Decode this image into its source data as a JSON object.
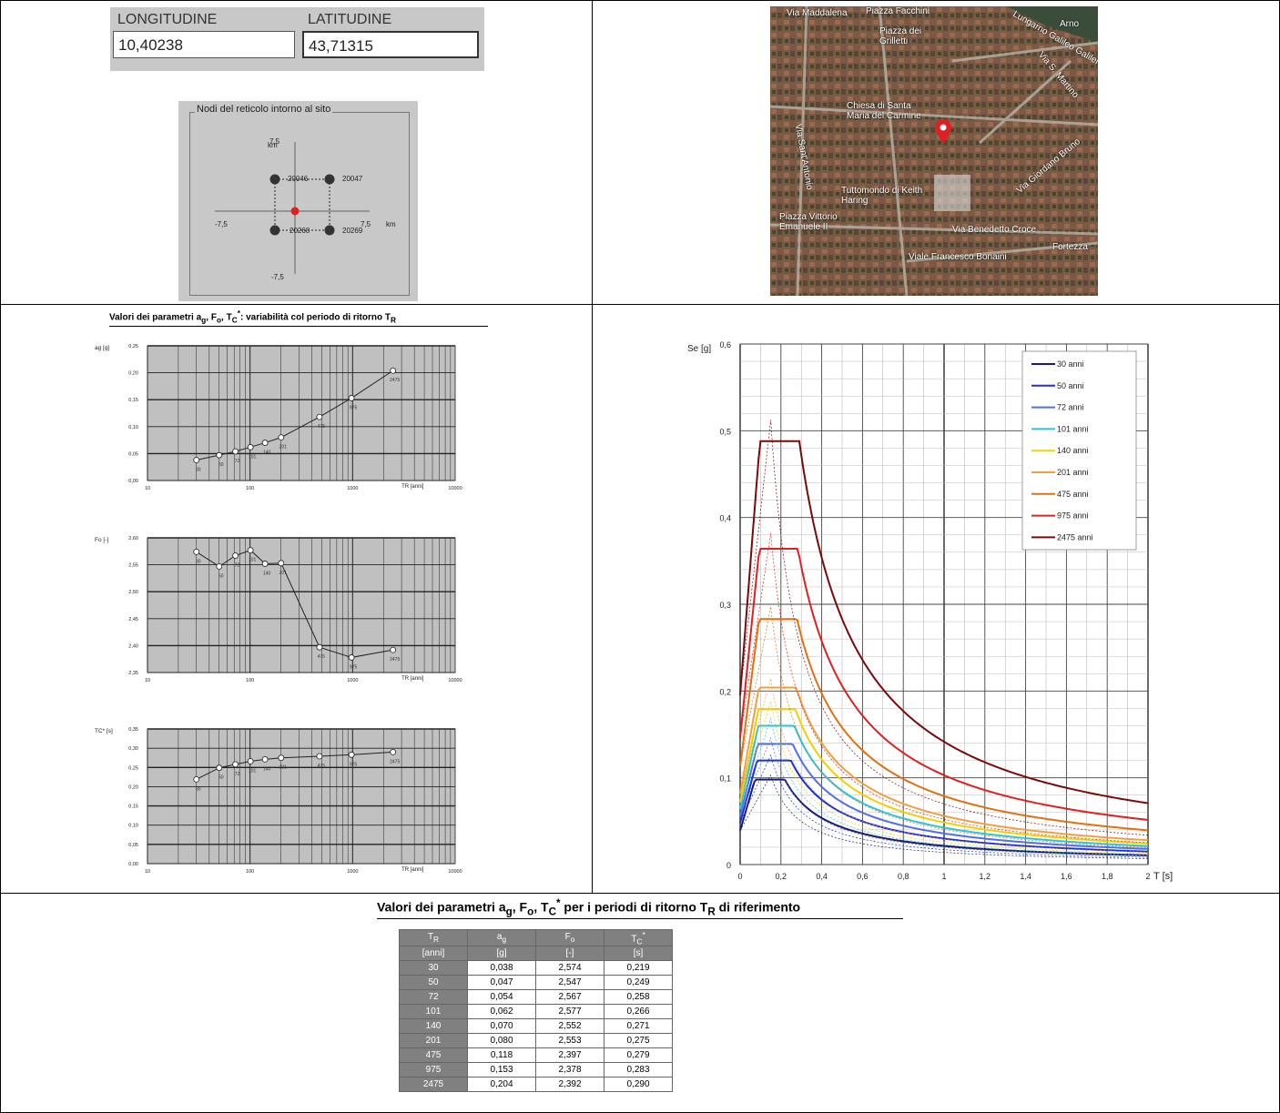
{
  "coords": {
    "lon_label": "LONGITUDINE",
    "lat_label": "LATITUDINE",
    "lon_value": "10,40238",
    "lat_value": "43,71315"
  },
  "nodes": {
    "title": "Nodi del reticolo intorno al sito",
    "ids": [
      "20046",
      "20047",
      "20268",
      "20269"
    ],
    "axis_pos": "7,5",
    "axis_neg": "-7,5",
    "unit": "km"
  },
  "map": {
    "labels": [
      "Piazza dei Grilletti",
      "Chiesa di Santa Maria del Carmine",
      "Tuttomondo di Keith Haring",
      "Piazza Vittorio Emanuele II",
      "Via Benedetto Croce",
      "Viale Francesco Bonaini",
      "Fortezza",
      "Via S. Martino",
      "Via Sant'Antonio",
      "Lungarno Galileo Galilei",
      "Piazza Facchini",
      "Arno",
      "Via Giordano Bruno",
      "Via Maddalena"
    ],
    "marker_color": "#e02020"
  },
  "section1_title_parts": {
    "pre": "Valori dei parametri a",
    "ag_sub": "g",
    "mid1": ", F",
    "fo_sub": "o",
    "mid2": ", T",
    "tc_sub": "C",
    "tc_sup": "*",
    "post": ": variabilità col periodo di ritorno T",
    "tr_sub": "R"
  },
  "section2_title_parts": {
    "pre": "Valori dei parametri a",
    "ag_sub": "g",
    "mid1": ", F",
    "fo_sub": "o",
    "mid2": ", T",
    "tc_sub": "C",
    "tc_sup": "*",
    "post": " per i periodi di ritorno T",
    "tr_sub": "R",
    "post2": " di riferimento"
  },
  "table": {
    "headers": [
      {
        "main": "T",
        "sub": "R",
        "unit": "[anni]"
      },
      {
        "main": "a",
        "sub": "g",
        "unit": "[g]"
      },
      {
        "main": "F",
        "sub": "o",
        "unit": "[-]"
      },
      {
        "main": "T",
        "sub": "C",
        "sup": "*",
        "unit": "[s]"
      }
    ],
    "rows": [
      [
        "30",
        "0,038",
        "2,574",
        "0,219"
      ],
      [
        "50",
        "0,047",
        "2,547",
        "0,249"
      ],
      [
        "72",
        "0,054",
        "2,567",
        "0,258"
      ],
      [
        "101",
        "0,062",
        "2,577",
        "0,266"
      ],
      [
        "140",
        "0,070",
        "2,552",
        "0,271"
      ],
      [
        "201",
        "0,080",
        "2,553",
        "0,275"
      ],
      [
        "475",
        "0,118",
        "2,397",
        "0,279"
      ],
      [
        "975",
        "0,153",
        "2,378",
        "0,283"
      ],
      [
        "2475",
        "0,204",
        "2,392",
        "0,290"
      ]
    ]
  },
  "chart_data": [
    {
      "type": "line",
      "title": "",
      "ylabel": "ag [g]",
      "xlabel": "TR [anni]",
      "xscale": "log",
      "xlim": [
        10,
        10000
      ],
      "ylim": [
        0,
        0.25
      ],
      "x": [
        30,
        50,
        72,
        101,
        140,
        201,
        475,
        975,
        2475
      ],
      "values": [
        0.038,
        0.047,
        0.054,
        0.062,
        0.07,
        0.08,
        0.118,
        0.153,
        0.204
      ],
      "yticks": [
        "0,00",
        "0,05",
        "0,10",
        "0,15",
        "0,20",
        "0,25"
      ],
      "xticks": [
        "10",
        "100",
        "1000",
        "10000"
      ],
      "point_labels": [
        "30",
        "50",
        "72",
        "101",
        "140",
        "201",
        "475",
        "975",
        "2475"
      ]
    },
    {
      "type": "line",
      "title": "",
      "ylabel": "Fo [-]",
      "xlabel": "TR [anni]",
      "xscale": "log",
      "xlim": [
        10,
        10000
      ],
      "ylim": [
        2.35,
        2.6
      ],
      "x": [
        30,
        50,
        72,
        101,
        140,
        201,
        475,
        975,
        2475
      ],
      "values": [
        2.574,
        2.547,
        2.567,
        2.577,
        2.552,
        2.553,
        2.397,
        2.378,
        2.392
      ],
      "yticks": [
        "2,35",
        "2,40",
        "2,45",
        "2,50",
        "2,55",
        "2,60"
      ],
      "xticks": [
        "10",
        "100",
        "1000",
        "10000"
      ],
      "point_labels": [
        "30",
        "50",
        "72",
        "101",
        "140",
        "201",
        "475",
        "975",
        "2475"
      ]
    },
    {
      "type": "line",
      "title": "",
      "ylabel": "TC* [s]",
      "xlabel": "TR [anni]",
      "xscale": "log",
      "xlim": [
        10,
        10000
      ],
      "ylim": [
        0,
        0.35
      ],
      "x": [
        30,
        50,
        72,
        101,
        140,
        201,
        475,
        975,
        2475
      ],
      "values": [
        0.219,
        0.249,
        0.258,
        0.266,
        0.271,
        0.275,
        0.279,
        0.283,
        0.29
      ],
      "yticks": [
        "0,00",
        "0,05",
        "0,10",
        "0,15",
        "0,20",
        "0,25",
        "0,30",
        "0,35"
      ],
      "xticks": [
        "10",
        "100",
        "1000",
        "10000"
      ],
      "point_labels": [
        "30",
        "50",
        "72",
        "101",
        "140",
        "201",
        "475",
        "975",
        "2475"
      ]
    },
    {
      "type": "line",
      "title": "",
      "ylabel": "Se [g]",
      "xlabel": "T [s]",
      "xlim": [
        0,
        2
      ],
      "ylim": [
        0,
        0.6
      ],
      "xticks": [
        "0",
        "0,2",
        "0,4",
        "0,6",
        "0,8",
        "1",
        "1,2",
        "1,4",
        "1,6",
        "1,8",
        "2"
      ],
      "yticks": [
        "0",
        "0,1",
        "0,2",
        "0,3",
        "0,4",
        "0,5",
        "0,6"
      ],
      "legend_position": "top-right",
      "series": [
        {
          "name": "30 anni",
          "color": "#1a1a6e",
          "plateau": 0.098,
          "tb": 0.073,
          "tc": 0.219
        },
        {
          "name": "50 anni",
          "color": "#1b2fd0",
          "plateau": 0.12,
          "tb": 0.083,
          "tc": 0.249
        },
        {
          "name": "72 anni",
          "color": "#4f6fe8",
          "plateau": 0.139,
          "tb": 0.086,
          "tc": 0.258
        },
        {
          "name": "101 anni",
          "color": "#2bc4d8",
          "plateau": 0.16,
          "tb": 0.089,
          "tc": 0.266
        },
        {
          "name": "140 anni",
          "color": "#f0d000",
          "plateau": 0.179,
          "tb": 0.09,
          "tc": 0.271
        },
        {
          "name": "201 anni",
          "color": "#f0a040",
          "plateau": 0.204,
          "tb": 0.092,
          "tc": 0.275
        },
        {
          "name": "475 anni",
          "color": "#e07010",
          "plateau": 0.283,
          "tb": 0.093,
          "tc": 0.279
        },
        {
          "name": "975 anni",
          "color": "#e02020",
          "plateau": 0.364,
          "tb": 0.094,
          "tc": 0.283
        },
        {
          "name": "2475 anni",
          "color": "#7a0a0a",
          "plateau": 0.488,
          "tb": 0.097,
          "tc": 0.29
        }
      ]
    }
  ]
}
